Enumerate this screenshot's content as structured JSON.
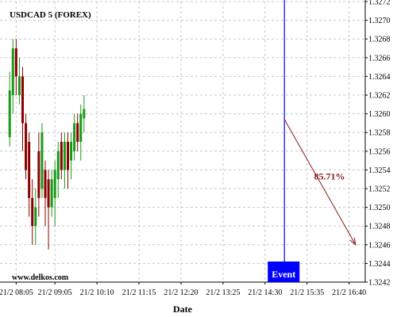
{
  "chart_data": {
    "type": "candlestick",
    "title": "USDCAD 5 (FOREX)",
    "xlabel": "Date",
    "watermark": "www.delkos.com",
    "x": [
      "21/2 07:55",
      "21/2 08:00",
      "21/2 08:05",
      "21/2 08:10",
      "21/2 08:15",
      "21/2 08:20",
      "21/2 08:25",
      "21/2 08:30",
      "21/2 08:35",
      "21/2 08:40",
      "21/2 08:45",
      "21/2 08:50",
      "21/2 08:55",
      "21/2 09:00",
      "21/2 09:05",
      "21/2 09:10",
      "21/2 09:15",
      "21/2 09:20",
      "21/2 09:25",
      "21/2 09:30",
      "21/2 09:35",
      "21/2 09:40",
      "21/2 09:45",
      "21/2 09:50"
    ],
    "open": [
      1.32575,
      1.3262,
      1.3267,
      1.3262,
      1.3264,
      1.3259,
      1.3257,
      1.3251,
      1.3248,
      1.3256,
      1.3252,
      1.3254,
      1.3253,
      1.325,
      1.3251,
      1.3253,
      1.3257,
      1.3254,
      1.3257,
      1.3255,
      1.3256,
      1.3259,
      1.3257,
      1.32595
    ],
    "high": [
      1.32645,
      1.3268,
      1.3268,
      1.3266,
      1.3265,
      1.326,
      1.3258,
      1.3253,
      1.3252,
      1.3258,
      1.3259,
      1.3255,
      1.3254,
      1.3254,
      1.3255,
      1.3257,
      1.3258,
      1.3258,
      1.3258,
      1.3258,
      1.326,
      1.326,
      1.3261,
      1.3262
    ],
    "low": [
      1.32565,
      1.326,
      1.3262,
      1.3261,
      1.3256,
      1.3253,
      1.3249,
      1.3246,
      1.3246,
      1.3249,
      1.3251,
      1.3248,
      1.32455,
      1.3249,
      1.3248,
      1.3251,
      1.3253,
      1.3252,
      1.3252,
      1.3253,
      1.3255,
      1.3256,
      1.3255,
      1.3258
    ],
    "close": [
      1.32625,
      1.3267,
      1.3264,
      1.3264,
      1.3259,
      1.3254,
      1.3251,
      1.3248,
      1.325,
      1.3251,
      1.3258,
      1.3251,
      1.325,
      1.3253,
      1.3254,
      1.3256,
      1.3254,
      1.3257,
      1.3254,
      1.3257,
      1.3259,
      1.3257,
      1.326,
      1.32605
    ],
    "up_color": "#1a9a1a",
    "down_color": "#8b0000",
    "xlim": [
      "21/2 07:40",
      "21/2 17:05"
    ],
    "xticks": [
      "21/2 08:05",
      "21/2 09:05",
      "21/2 10:10",
      "21/2 11:15",
      "21/2 12:20",
      "21/2 13:25",
      "21/2 14:30",
      "21/2 15:35",
      "21/2 16:40"
    ],
    "ylim": [
      1.3242,
      1.3272
    ],
    "yticks": [
      1.3242,
      1.3244,
      1.3246,
      1.3248,
      {
        "value": 1.325,
        "label": "1.3250"
      },
      1.3252,
      1.3254,
      1.3256,
      1.3258,
      {
        "value": 1.326,
        "label": "1.3260"
      },
      1.3262,
      1.3264,
      1.3266,
      1.3268,
      {
        "value": 1.327,
        "label": "1.3270"
      },
      1.3272
    ],
    "grid": true,
    "event": {
      "x": "21/2 15:00",
      "label": "Event",
      "color": "#0000ff"
    },
    "forecast": {
      "x": [
        "21/2 15:00",
        "21/2 16:50"
      ],
      "y": [
        1.32594,
        1.3246
      ],
      "label": "85.71%",
      "color": "#8b1a1a"
    }
  }
}
